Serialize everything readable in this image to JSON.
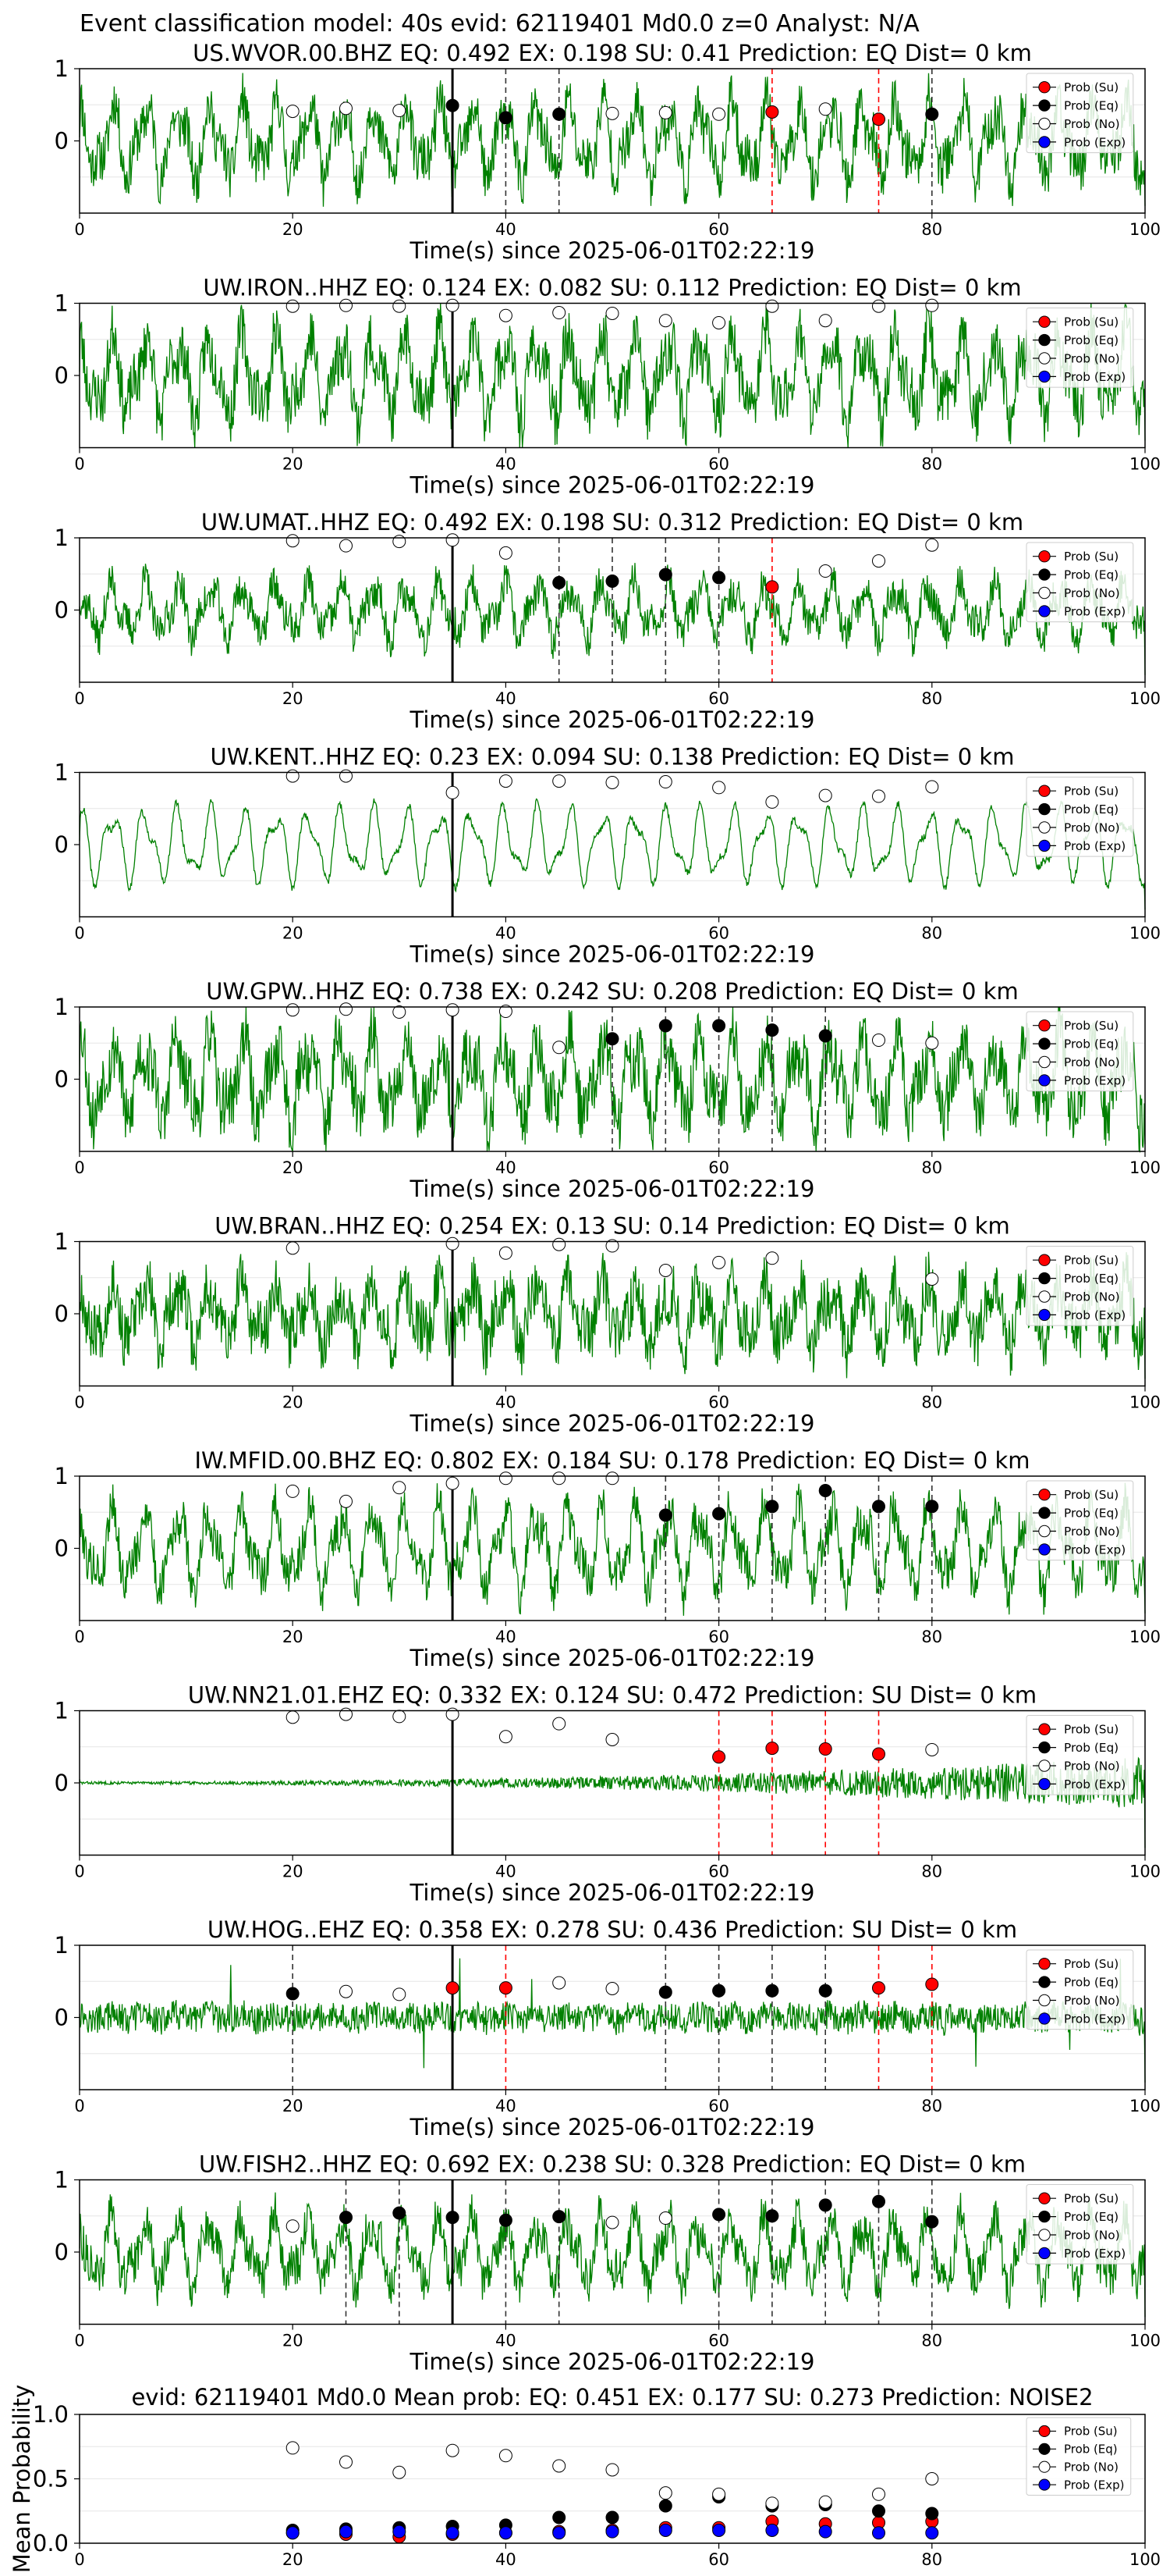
{
  "figure_title": "Event classification model: 40s evid: 62119401 Md0.0 z=0 Analyst: N/A",
  "legend_labels": [
    "Prob (Su)",
    "Prob (Eq)",
    "Prob (No)",
    "Prob (Exp)"
  ],
  "colors": {
    "su": "#ff0000",
    "eq": "#000000",
    "no": "#ffffff",
    "exp": "#0000ff",
    "trace": "#008000"
  },
  "chart_data": [
    {
      "type": "line",
      "title": "US.WVOR.00.BHZ   EQ: 0.492  EX: 0.198  SU: 0.41   Prediction: EQ    Dist= 0 km",
      "xlabel": "Time(s) since 2025-06-01T02:22:19",
      "ylabel": "",
      "xlim": [
        0,
        100
      ],
      "ylim": [
        -1,
        1
      ],
      "xticks": [
        0,
        20,
        40,
        60,
        80,
        100
      ],
      "yticks": [
        0,
        1
      ],
      "origin_line": 35,
      "amplitude": 0.55,
      "noise": 0.35,
      "seed": 11,
      "envelope": "uniform",
      "markers": [
        {
          "x": 20,
          "y": 0.41,
          "class": "no"
        },
        {
          "x": 25,
          "y": 0.45,
          "class": "no"
        },
        {
          "x": 30,
          "y": 0.42,
          "class": "no"
        },
        {
          "x": 35,
          "y": 0.49,
          "class": "eq"
        },
        {
          "x": 40,
          "y": 0.32,
          "class": "eq"
        },
        {
          "x": 45,
          "y": 0.37,
          "class": "eq"
        },
        {
          "x": 50,
          "y": 0.38,
          "class": "no"
        },
        {
          "x": 55,
          "y": 0.39,
          "class": "no"
        },
        {
          "x": 60,
          "y": 0.37,
          "class": "no"
        },
        {
          "x": 65,
          "y": 0.4,
          "class": "su"
        },
        {
          "x": 70,
          "y": 0.44,
          "class": "no"
        },
        {
          "x": 75,
          "y": 0.3,
          "class": "su"
        },
        {
          "x": 80,
          "y": 0.37,
          "class": "eq"
        }
      ]
    },
    {
      "type": "line",
      "title": "UW.IRON..HHZ   EQ: 0.124  EX: 0.082  SU: 0.112   Prediction: EQ    Dist= 0 km",
      "xlabel": "Time(s) since 2025-06-01T02:22:19",
      "ylabel": "",
      "xlim": [
        0,
        100
      ],
      "ylim": [
        -1,
        1
      ],
      "xticks": [
        0,
        20,
        40,
        60,
        80,
        100
      ],
      "yticks": [
        0,
        1
      ],
      "origin_line": 35,
      "amplitude": 0.6,
      "noise": 0.4,
      "seed": 23,
      "envelope": "uniform",
      "markers": [
        {
          "x": 20,
          "y": 0.96,
          "class": "no"
        },
        {
          "x": 25,
          "y": 0.97,
          "class": "no"
        },
        {
          "x": 30,
          "y": 0.96,
          "class": "no"
        },
        {
          "x": 35,
          "y": 0.97,
          "class": "no"
        },
        {
          "x": 40,
          "y": 0.83,
          "class": "no"
        },
        {
          "x": 45,
          "y": 0.87,
          "class": "no"
        },
        {
          "x": 50,
          "y": 0.86,
          "class": "no"
        },
        {
          "x": 55,
          "y": 0.76,
          "class": "no"
        },
        {
          "x": 60,
          "y": 0.73,
          "class": "no"
        },
        {
          "x": 65,
          "y": 0.96,
          "class": "no"
        },
        {
          "x": 70,
          "y": 0.76,
          "class": "no"
        },
        {
          "x": 75,
          "y": 0.96,
          "class": "no"
        },
        {
          "x": 80,
          "y": 0.97,
          "class": "no"
        }
      ]
    },
    {
      "type": "line",
      "title": "UW.UMAT..HHZ   EQ: 0.492  EX: 0.198  SU: 0.312   Prediction: EQ    Dist= 0 km",
      "xlabel": "Time(s) since 2025-06-01T02:22:19",
      "ylabel": "",
      "xlim": [
        0,
        100
      ],
      "ylim": [
        -1,
        1
      ],
      "xticks": [
        0,
        20,
        40,
        60,
        80,
        100
      ],
      "yticks": [
        0,
        1
      ],
      "origin_line": 35,
      "amplitude": 0.4,
      "noise": 0.25,
      "seed": 37,
      "envelope": "uniform",
      "markers": [
        {
          "x": 20,
          "y": 0.96,
          "class": "no"
        },
        {
          "x": 25,
          "y": 0.89,
          "class": "no"
        },
        {
          "x": 30,
          "y": 0.95,
          "class": "no"
        },
        {
          "x": 35,
          "y": 0.97,
          "class": "no"
        },
        {
          "x": 40,
          "y": 0.79,
          "class": "no"
        },
        {
          "x": 45,
          "y": 0.38,
          "class": "eq"
        },
        {
          "x": 50,
          "y": 0.4,
          "class": "eq"
        },
        {
          "x": 55,
          "y": 0.49,
          "class": "eq"
        },
        {
          "x": 60,
          "y": 0.45,
          "class": "eq"
        },
        {
          "x": 65,
          "y": 0.32,
          "class": "su"
        },
        {
          "x": 70,
          "y": 0.54,
          "class": "no"
        },
        {
          "x": 75,
          "y": 0.68,
          "class": "no"
        },
        {
          "x": 80,
          "y": 0.9,
          "class": "no"
        }
      ]
    },
    {
      "type": "line",
      "title": "UW.KENT..HHZ   EQ: 0.23  EX: 0.094  SU: 0.138   Prediction: EQ    Dist= 0 km",
      "xlabel": "Time(s) since 2025-06-01T02:22:19",
      "ylabel": "",
      "xlim": [
        0,
        100
      ],
      "ylim": [
        -1,
        1
      ],
      "xticks": [
        0,
        20,
        40,
        60,
        80,
        100
      ],
      "yticks": [
        0,
        1
      ],
      "origin_line": 35,
      "amplitude": 0.55,
      "noise": 0.05,
      "seed": 41,
      "envelope": "uniform",
      "markers": [
        {
          "x": 20,
          "y": 0.95,
          "class": "no"
        },
        {
          "x": 25,
          "y": 0.95,
          "class": "no"
        },
        {
          "x": 35,
          "y": 0.72,
          "class": "no"
        },
        {
          "x": 40,
          "y": 0.88,
          "class": "no"
        },
        {
          "x": 45,
          "y": 0.88,
          "class": "no"
        },
        {
          "x": 50,
          "y": 0.86,
          "class": "no"
        },
        {
          "x": 55,
          "y": 0.87,
          "class": "no"
        },
        {
          "x": 60,
          "y": 0.79,
          "class": "no"
        },
        {
          "x": 65,
          "y": 0.59,
          "class": "no"
        },
        {
          "x": 70,
          "y": 0.68,
          "class": "no"
        },
        {
          "x": 75,
          "y": 0.67,
          "class": "no"
        },
        {
          "x": 80,
          "y": 0.8,
          "class": "no"
        }
      ]
    },
    {
      "type": "line",
      "title": "UW.GPW..HHZ   EQ: 0.738  EX: 0.242  SU: 0.208   Prediction: EQ    Dist= 0 km",
      "xlabel": "Time(s) since 2025-06-01T02:22:19",
      "ylabel": "",
      "xlim": [
        0,
        100
      ],
      "ylim": [
        -1,
        1
      ],
      "xticks": [
        0,
        20,
        40,
        60,
        80,
        100
      ],
      "yticks": [
        0,
        1
      ],
      "origin_line": 35,
      "amplitude": 0.6,
      "noise": 0.45,
      "seed": 53,
      "envelope": "uniform",
      "markers": [
        {
          "x": 20,
          "y": 0.96,
          "class": "no"
        },
        {
          "x": 25,
          "y": 0.97,
          "class": "no"
        },
        {
          "x": 30,
          "y": 0.93,
          "class": "no"
        },
        {
          "x": 35,
          "y": 0.96,
          "class": "no"
        },
        {
          "x": 40,
          "y": 0.94,
          "class": "no"
        },
        {
          "x": 45,
          "y": 0.44,
          "class": "no"
        },
        {
          "x": 50,
          "y": 0.56,
          "class": "eq"
        },
        {
          "x": 55,
          "y": 0.74,
          "class": "eq"
        },
        {
          "x": 60,
          "y": 0.74,
          "class": "eq"
        },
        {
          "x": 65,
          "y": 0.68,
          "class": "eq"
        },
        {
          "x": 70,
          "y": 0.6,
          "class": "eq"
        },
        {
          "x": 75,
          "y": 0.54,
          "class": "no"
        },
        {
          "x": 80,
          "y": 0.5,
          "class": "no"
        }
      ]
    },
    {
      "type": "line",
      "title": "UW.BRAN..HHZ   EQ: 0.254  EX: 0.13  SU: 0.14   Prediction: EQ    Dist= 0 km",
      "xlabel": "Time(s) since 2025-06-01T02:22:19",
      "ylabel": "",
      "xlim": [
        0,
        100
      ],
      "ylim": [
        -1,
        1
      ],
      "xticks": [
        0,
        20,
        40,
        60,
        80,
        100
      ],
      "yticks": [
        0,
        1
      ],
      "origin_line": 35,
      "amplitude": 0.45,
      "noise": 0.4,
      "seed": 67,
      "envelope": "uniform",
      "markers": [
        {
          "x": 20,
          "y": 0.91,
          "class": "no"
        },
        {
          "x": 35,
          "y": 0.97,
          "class": "no"
        },
        {
          "x": 40,
          "y": 0.84,
          "class": "no"
        },
        {
          "x": 45,
          "y": 0.96,
          "class": "no"
        },
        {
          "x": 50,
          "y": 0.94,
          "class": "no"
        },
        {
          "x": 55,
          "y": 0.6,
          "class": "no"
        },
        {
          "x": 60,
          "y": 0.71,
          "class": "no"
        },
        {
          "x": 65,
          "y": 0.77,
          "class": "no"
        },
        {
          "x": 80,
          "y": 0.48,
          "class": "no"
        }
      ]
    },
    {
      "type": "line",
      "title": "IW.MFID.00.BHZ   EQ: 0.802  EX: 0.184  SU: 0.178   Prediction: EQ    Dist= 0 km",
      "xlabel": "Time(s) since 2025-06-01T02:22:19",
      "ylabel": "",
      "xlim": [
        0,
        100
      ],
      "ylim": [
        -1,
        1
      ],
      "xticks": [
        0,
        20,
        40,
        60,
        80,
        100
      ],
      "yticks": [
        0,
        1
      ],
      "origin_line": 35,
      "amplitude": 0.6,
      "noise": 0.3,
      "seed": 79,
      "envelope": "uniform",
      "markers": [
        {
          "x": 20,
          "y": 0.79,
          "class": "no"
        },
        {
          "x": 25,
          "y": 0.65,
          "class": "no"
        },
        {
          "x": 30,
          "y": 0.84,
          "class": "no"
        },
        {
          "x": 35,
          "y": 0.9,
          "class": "no"
        },
        {
          "x": 40,
          "y": 0.97,
          "class": "no"
        },
        {
          "x": 45,
          "y": 0.97,
          "class": "no"
        },
        {
          "x": 50,
          "y": 0.97,
          "class": "no"
        },
        {
          "x": 55,
          "y": 0.46,
          "class": "eq"
        },
        {
          "x": 60,
          "y": 0.48,
          "class": "eq"
        },
        {
          "x": 65,
          "y": 0.58,
          "class": "eq"
        },
        {
          "x": 70,
          "y": 0.8,
          "class": "eq"
        },
        {
          "x": 75,
          "y": 0.58,
          "class": "eq"
        },
        {
          "x": 80,
          "y": 0.58,
          "class": "eq"
        }
      ]
    },
    {
      "type": "line",
      "title": "UW.NN21.01.EHZ   EQ: 0.332  EX: 0.124  SU: 0.472   Prediction: SU    Dist= 0 km",
      "xlabel": "Time(s) since 2025-06-01T02:22:19",
      "ylabel": "",
      "xlim": [
        0,
        100
      ],
      "ylim": [
        -1,
        1
      ],
      "xticks": [
        0,
        20,
        40,
        60,
        80,
        100
      ],
      "yticks": [
        0,
        1
      ],
      "origin_line": 35,
      "amplitude": 0.0,
      "noise": 0.08,
      "seed": 83,
      "envelope": "growing",
      "markers": [
        {
          "x": 20,
          "y": 0.91,
          "class": "no"
        },
        {
          "x": 25,
          "y": 0.95,
          "class": "no"
        },
        {
          "x": 30,
          "y": 0.92,
          "class": "no"
        },
        {
          "x": 35,
          "y": 0.95,
          "class": "no"
        },
        {
          "x": 40,
          "y": 0.64,
          "class": "no"
        },
        {
          "x": 45,
          "y": 0.82,
          "class": "no"
        },
        {
          "x": 50,
          "y": 0.6,
          "class": "no"
        },
        {
          "x": 60,
          "y": 0.36,
          "class": "su"
        },
        {
          "x": 65,
          "y": 0.48,
          "class": "su"
        },
        {
          "x": 70,
          "y": 0.47,
          "class": "su"
        },
        {
          "x": 75,
          "y": 0.4,
          "class": "su"
        },
        {
          "x": 80,
          "y": 0.46,
          "class": "no"
        }
      ]
    },
    {
      "type": "line",
      "title": "UW.HOG..EHZ   EQ: 0.358  EX: 0.278  SU: 0.436   Prediction: SU    Dist= 0 km",
      "xlabel": "Time(s) since 2025-06-01T02:22:19",
      "ylabel": "",
      "xlim": [
        0,
        100
      ],
      "ylim": [
        -1,
        1
      ],
      "xticks": [
        0,
        20,
        40,
        60,
        80,
        100
      ],
      "yticks": [
        0,
        1
      ],
      "origin_line": 35,
      "amplitude": 0.05,
      "noise": 0.2,
      "seed": 97,
      "envelope": "spiky",
      "markers": [
        {
          "x": 20,
          "y": 0.33,
          "class": "eq"
        },
        {
          "x": 25,
          "y": 0.36,
          "class": "no"
        },
        {
          "x": 30,
          "y": 0.32,
          "class": "no"
        },
        {
          "x": 35,
          "y": 0.41,
          "class": "su"
        },
        {
          "x": 40,
          "y": 0.41,
          "class": "su"
        },
        {
          "x": 45,
          "y": 0.48,
          "class": "no"
        },
        {
          "x": 50,
          "y": 0.4,
          "class": "no"
        },
        {
          "x": 55,
          "y": 0.35,
          "class": "eq"
        },
        {
          "x": 60,
          "y": 0.37,
          "class": "eq"
        },
        {
          "x": 65,
          "y": 0.37,
          "class": "eq"
        },
        {
          "x": 70,
          "y": 0.37,
          "class": "eq"
        },
        {
          "x": 75,
          "y": 0.41,
          "class": "su"
        },
        {
          "x": 80,
          "y": 0.46,
          "class": "su"
        }
      ]
    },
    {
      "type": "line",
      "title": "UW.FISH2..HHZ   EQ: 0.692  EX: 0.238  SU: 0.328   Prediction: EQ    Dist= 0 km",
      "xlabel": "Time(s) since 2025-06-01T02:22:19",
      "ylabel": "",
      "xlim": [
        0,
        100
      ],
      "ylim": [
        -1,
        1
      ],
      "xticks": [
        0,
        20,
        40,
        60,
        80,
        100
      ],
      "yticks": [
        0,
        1
      ],
      "origin_line": 35,
      "amplitude": 0.5,
      "noise": 0.3,
      "seed": 113,
      "envelope": "uniform",
      "markers": [
        {
          "x": 20,
          "y": 0.36,
          "class": "no"
        },
        {
          "x": 25,
          "y": 0.48,
          "class": "eq"
        },
        {
          "x": 30,
          "y": 0.54,
          "class": "eq"
        },
        {
          "x": 35,
          "y": 0.48,
          "class": "eq"
        },
        {
          "x": 40,
          "y": 0.44,
          "class": "eq"
        },
        {
          "x": 45,
          "y": 0.49,
          "class": "eq"
        },
        {
          "x": 50,
          "y": 0.41,
          "class": "no"
        },
        {
          "x": 55,
          "y": 0.47,
          "class": "no"
        },
        {
          "x": 60,
          "y": 0.52,
          "class": "eq"
        },
        {
          "x": 65,
          "y": 0.5,
          "class": "eq"
        },
        {
          "x": 70,
          "y": 0.65,
          "class": "eq"
        },
        {
          "x": 75,
          "y": 0.7,
          "class": "eq"
        },
        {
          "x": 80,
          "y": 0.42,
          "class": "eq"
        }
      ]
    },
    {
      "type": "scatter",
      "title": "evid: 62119401  Md0.0   Mean prob:   EQ: 0.451  EX: 0.177  SU: 0.273   Prediction: NOISE2",
      "xlabel": "",
      "ylabel": "Mean Probability",
      "xlim": [
        0,
        100
      ],
      "ylim": [
        0,
        1
      ],
      "xticks": [
        0,
        20,
        40,
        60,
        80,
        100
      ],
      "yticks": [
        0.0,
        0.5,
        1.0
      ],
      "ytick_labels": [
        "0.0",
        "0.5",
        "1.0"
      ],
      "x": [
        20,
        25,
        30,
        35,
        40,
        45,
        50,
        55,
        60,
        65,
        70,
        75,
        80
      ],
      "series": [
        {
          "name": "Prob (Su)",
          "class": "su",
          "values": [
            0.08,
            0.07,
            0.05,
            0.07,
            0.08,
            0.09,
            0.1,
            0.12,
            0.12,
            0.17,
            0.15,
            0.16,
            0.17
          ]
        },
        {
          "name": "Prob (Eq)",
          "class": "eq",
          "values": [
            0.1,
            0.11,
            0.12,
            0.13,
            0.14,
            0.2,
            0.2,
            0.29,
            0.36,
            0.29,
            0.3,
            0.25,
            0.23
          ]
        },
        {
          "name": "Prob (No)",
          "class": "no",
          "values": [
            0.74,
            0.63,
            0.55,
            0.72,
            0.68,
            0.6,
            0.57,
            0.39,
            0.38,
            0.31,
            0.32,
            0.38,
            0.5
          ]
        },
        {
          "name": "Prob (Exp)",
          "class": "exp",
          "values": [
            0.08,
            0.09,
            0.09,
            0.08,
            0.08,
            0.08,
            0.09,
            0.1,
            0.1,
            0.1,
            0.09,
            0.08,
            0.08
          ]
        }
      ]
    }
  ]
}
